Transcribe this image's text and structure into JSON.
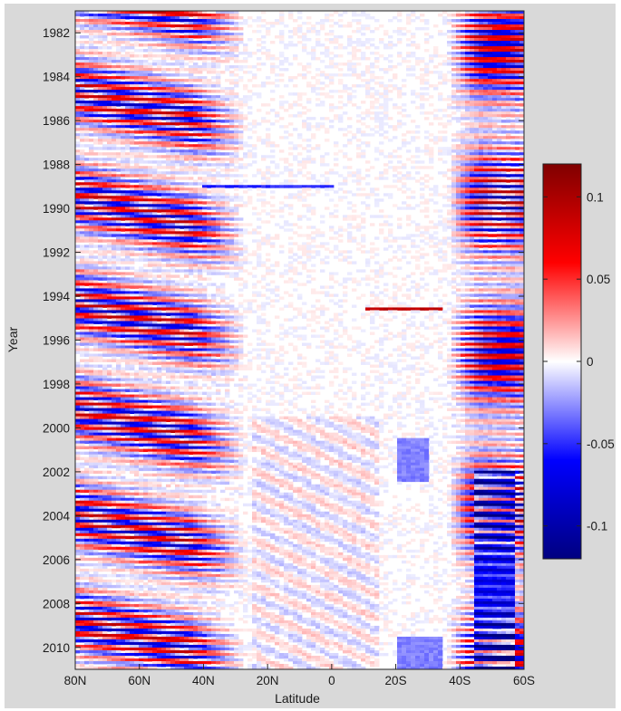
{
  "chart_data": {
    "type": "heatmap",
    "title": "",
    "xlabel": "Latitude",
    "ylabel": "Year",
    "x_ticks": [
      "80N",
      "60N",
      "40N",
      "20N",
      "0",
      "20S",
      "40S",
      "60S"
    ],
    "x_tick_values": [
      80,
      60,
      40,
      20,
      0,
      -20,
      -40,
      -60
    ],
    "xlim": [
      80,
      -60
    ],
    "y_ticks": [
      "1982",
      "1984",
      "1986",
      "1988",
      "1990",
      "1992",
      "1994",
      "1996",
      "1998",
      "2000",
      "2002",
      "2004",
      "2006",
      "2008",
      "2010"
    ],
    "y_tick_values": [
      1982,
      1984,
      1986,
      1988,
      1990,
      1992,
      1994,
      1996,
      1998,
      2000,
      2002,
      2004,
      2006,
      2008,
      2010
    ],
    "ylim": [
      1981,
      2011
    ],
    "y_reversed": true,
    "colorbar": {
      "range": [
        -0.12,
        0.12
      ],
      "ticks": [
        0.1,
        0.05,
        0,
        -0.05,
        -0.1
      ],
      "tick_labels": [
        "0.1",
        "0.05",
        "0",
        "-0.05",
        "-0.1"
      ],
      "colormap": [
        "#000080",
        "#0000ff",
        "#ffffff",
        "#ff0000",
        "#800000"
      ]
    },
    "grid": false,
    "features": [
      {
        "description": "seasonal alternating anomaly bands, northern mid-high latitudes",
        "lat_range": [
          80,
          30
        ],
        "years": [
          1981,
          2011
        ],
        "amplitude": 0.09
      },
      {
        "description": "seasonal alternating anomaly bands, southern high latitudes",
        "lat_range": [
          -40,
          -55
        ],
        "years": [
          1981,
          2011
        ],
        "amplitude": 0.1
      },
      {
        "description": "positive anomaly streak",
        "lat_range": [
          -10,
          -35
        ],
        "years": [
          1994.5,
          1994.6
        ],
        "amplitude": 0.09
      },
      {
        "description": "negative anomaly streak",
        "lat_range": [
          40,
          0
        ],
        "years": [
          1988.9,
          1989.0
        ],
        "amplitude": -0.05
      },
      {
        "description": "weak negative patch",
        "lat_range": [
          -20,
          -30
        ],
        "years": [
          2000.5,
          2002.5
        ],
        "amplitude": -0.03
      },
      {
        "description": "weak negative patch",
        "lat_range": [
          -20,
          -35
        ],
        "years": [
          2009.5,
          2011
        ],
        "amplitude": -0.03
      },
      {
        "description": "persistent negative band",
        "lat_range": [
          -45,
          -57
        ],
        "years": [
          2002,
          2011
        ],
        "amplitude": -0.06
      }
    ]
  }
}
